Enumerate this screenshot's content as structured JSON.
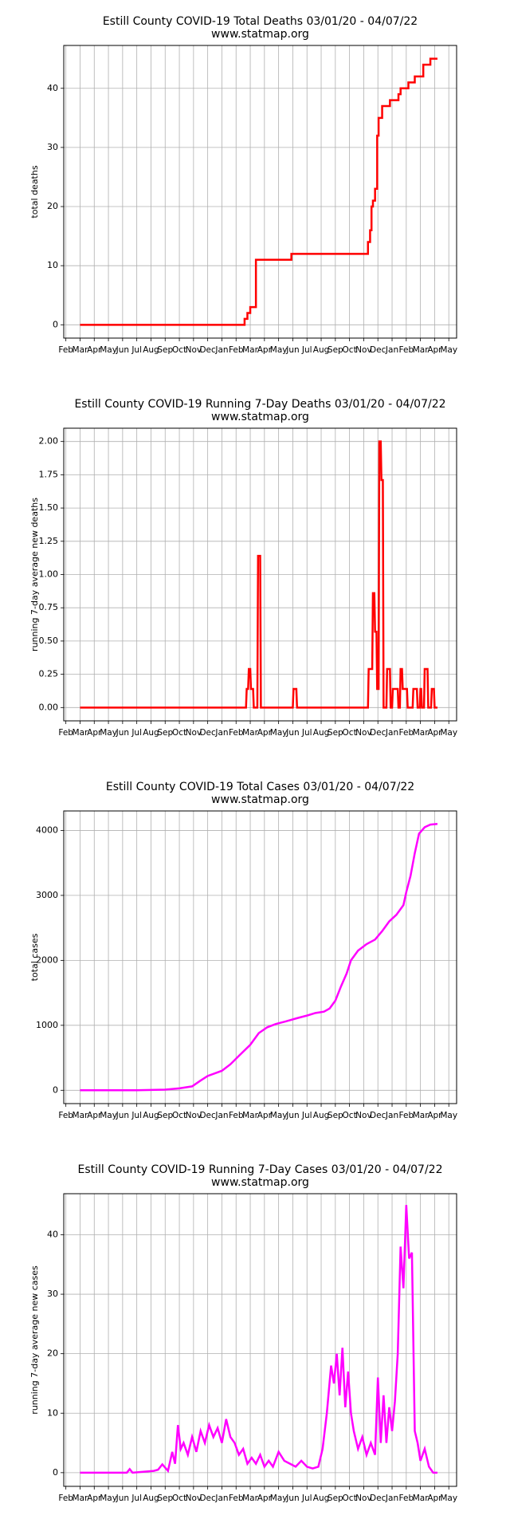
{
  "chart_data": [
    {
      "type": "line",
      "title": "Estill County COVID-19 Total Deaths 03/01/20 - 04/07/22",
      "subtitle": "www.statmap.org",
      "ylabel": "total deaths",
      "color": "#ff0000",
      "grid": true,
      "x": [
        1,
        12.6,
        12.6,
        12.8,
        12.8,
        13.0,
        13.0,
        13.4,
        13.4,
        15.9,
        15.9,
        21.3,
        21.3,
        21.45,
        21.45,
        21.55,
        21.55,
        21.65,
        21.65,
        21.8,
        21.8,
        21.95,
        21.95,
        22.05,
        22.05,
        22.3,
        22.3,
        22.85,
        22.85,
        23.45,
        23.45,
        23.6,
        23.6,
        24.15,
        24.15,
        24.6,
        24.6,
        25.2,
        25.2,
        25.7,
        25.7,
        26.2
      ],
      "values": [
        0,
        0,
        1,
        1,
        2,
        2,
        3,
        3,
        11,
        11,
        12,
        12,
        14,
        14,
        16,
        16,
        20,
        20,
        21,
        21,
        23,
        23,
        32,
        32,
        35,
        35,
        37,
        37,
        38,
        38,
        39,
        39,
        40,
        40,
        41,
        41,
        42,
        42,
        44,
        44,
        45,
        45
      ],
      "xlim": [
        -0.15,
        27.55
      ],
      "xticks": [
        {
          "value": 0,
          "label": "Feb"
        },
        {
          "value": 1,
          "label": "Mar"
        },
        {
          "value": 2,
          "label": "Apr"
        },
        {
          "value": 3,
          "label": "May"
        },
        {
          "value": 4,
          "label": "Jun"
        },
        {
          "value": 5,
          "label": "Jul"
        },
        {
          "value": 6,
          "label": "Aug"
        },
        {
          "value": 7,
          "label": "Sep"
        },
        {
          "value": 8,
          "label": "Oct"
        },
        {
          "value": 9,
          "label": "Nov"
        },
        {
          "value": 10,
          "label": "Dec"
        },
        {
          "value": 11,
          "label": "Jan"
        },
        {
          "value": 12,
          "label": "Feb"
        },
        {
          "value": 13,
          "label": "Mar"
        },
        {
          "value": 14,
          "label": "Apr"
        },
        {
          "value": 15,
          "label": "May"
        },
        {
          "value": 16,
          "label": "Jun"
        },
        {
          "value": 17,
          "label": "Jul"
        },
        {
          "value": 18,
          "label": "Aug"
        },
        {
          "value": 19,
          "label": "Sep"
        },
        {
          "value": 20,
          "label": "Oct"
        },
        {
          "value": 21,
          "label": "Nov"
        },
        {
          "value": 22,
          "label": "Dec"
        },
        {
          "value": 23,
          "label": "Jan"
        },
        {
          "value": 24,
          "label": "Feb"
        },
        {
          "value": 25,
          "label": "Mar"
        },
        {
          "value": 26,
          "label": "Apr"
        },
        {
          "value": 27,
          "label": "May"
        }
      ],
      "ylim": [
        -2.25,
        47.25
      ],
      "yticks": [
        0,
        10,
        20,
        30,
        40
      ]
    },
    {
      "type": "line",
      "title": "Estill County COVID-19 Running 7-Day Deaths 03/01/20 - 04/07/22",
      "subtitle": "www.statmap.org",
      "ylabel": "running 7-day average new deaths",
      "color": "#ff0000",
      "grid": true,
      "x": [
        1,
        12.7,
        12.75,
        12.85,
        12.9,
        13.0,
        13.05,
        13.2,
        13.25,
        13.5,
        13.55,
        13.7,
        13.75,
        16.0,
        16.05,
        16.25,
        16.3,
        21.3,
        21.35,
        21.6,
        21.65,
        21.75,
        21.8,
        21.9,
        21.95,
        22.05,
        22.1,
        22.2,
        22.25,
        22.35,
        22.4,
        22.6,
        22.65,
        22.85,
        22.9,
        23.0,
        23.05,
        23.4,
        23.45,
        23.55,
        23.6,
        23.7,
        23.75,
        24.05,
        24.1,
        24.45,
        24.5,
        24.75,
        24.8,
        24.95,
        25.0,
        25.05,
        25.1,
        25.25,
        25.3,
        25.5,
        25.55,
        25.75,
        25.8,
        25.95,
        26.0,
        26.2
      ],
      "values": [
        0,
        0,
        0.14,
        0.14,
        0.29,
        0.29,
        0.14,
        0.14,
        0,
        0,
        1.14,
        1.14,
        0,
        0,
        0.14,
        0.14,
        0,
        0,
        0.29,
        0.29,
        0.86,
        0.86,
        0.57,
        0.57,
        0.14,
        0.14,
        2.0,
        2.0,
        1.71,
        1.71,
        0,
        0,
        0.29,
        0.29,
        0,
        0,
        0.14,
        0.14,
        0,
        0,
        0.29,
        0.29,
        0.14,
        0.14,
        0,
        0,
        0.14,
        0.14,
        0,
        0,
        0.14,
        0.14,
        0,
        0,
        0.29,
        0.29,
        0,
        0,
        0.14,
        0.14,
        0,
        0
      ],
      "xlim": [
        -0.15,
        27.55
      ],
      "xticks": [
        {
          "value": 0,
          "label": "Feb"
        },
        {
          "value": 1,
          "label": "Mar"
        },
        {
          "value": 2,
          "label": "Apr"
        },
        {
          "value": 3,
          "label": "May"
        },
        {
          "value": 4,
          "label": "Jun"
        },
        {
          "value": 5,
          "label": "Jul"
        },
        {
          "value": 6,
          "label": "Aug"
        },
        {
          "value": 7,
          "label": "Sep"
        },
        {
          "value": 8,
          "label": "Oct"
        },
        {
          "value": 9,
          "label": "Nov"
        },
        {
          "value": 10,
          "label": "Dec"
        },
        {
          "value": 11,
          "label": "Jan"
        },
        {
          "value": 12,
          "label": "Feb"
        },
        {
          "value": 13,
          "label": "Mar"
        },
        {
          "value": 14,
          "label": "Apr"
        },
        {
          "value": 15,
          "label": "May"
        },
        {
          "value": 16,
          "label": "Jun"
        },
        {
          "value": 17,
          "label": "Jul"
        },
        {
          "value": 18,
          "label": "Aug"
        },
        {
          "value": 19,
          "label": "Sep"
        },
        {
          "value": 20,
          "label": "Oct"
        },
        {
          "value": 21,
          "label": "Nov"
        },
        {
          "value": 22,
          "label": "Dec"
        },
        {
          "value": 23,
          "label": "Jan"
        },
        {
          "value": 24,
          "label": "Feb"
        },
        {
          "value": 25,
          "label": "Mar"
        },
        {
          "value": 26,
          "label": "Apr"
        },
        {
          "value": 27,
          "label": "May"
        }
      ],
      "ylim": [
        -0.1,
        2.1
      ],
      "yticks": [
        {
          "value": 0,
          "label": "0.00"
        },
        {
          "value": 0.25,
          "label": "0.25"
        },
        {
          "value": 0.5,
          "label": "0.50"
        },
        {
          "value": 0.75,
          "label": "0.75"
        },
        {
          "value": 1,
          "label": "1.00"
        },
        {
          "value": 1.25,
          "label": "1.25"
        },
        {
          "value": 1.5,
          "label": "1.50"
        },
        {
          "value": 1.75,
          "label": "1.75"
        },
        {
          "value": 2,
          "label": "2.00"
        }
      ]
    },
    {
      "type": "line",
      "title": "Estill County COVID-19 Total Cases 03/01/20 - 04/07/22",
      "subtitle": "www.statmap.org",
      "ylabel": "total cases",
      "color": "#ff00ff",
      "grid": true,
      "x": [
        1,
        5,
        7,
        8,
        8.9,
        9.5,
        10,
        11,
        11.6,
        12.2,
        13,
        13.6,
        14.2,
        14.8,
        15.5,
        16.3,
        17,
        17.6,
        18.2,
        18.6,
        19,
        19.4,
        19.8,
        20.1,
        20.6,
        21.2,
        21.8,
        22.3,
        22.8,
        23.3,
        23.8,
        24,
        24.3,
        24.6,
        24.9,
        25.3,
        25.7,
        26.2
      ],
      "values": [
        0,
        0,
        10,
        30,
        60,
        150,
        220,
        300,
        400,
        530,
        700,
        880,
        970,
        1020,
        1060,
        1110,
        1150,
        1190,
        1210,
        1260,
        1380,
        1600,
        1800,
        2000,
        2150,
        2250,
        2320,
        2450,
        2600,
        2700,
        2850,
        3050,
        3300,
        3650,
        3950,
        4050,
        4090,
        4100
      ],
      "xlim": [
        -0.15,
        27.55
      ],
      "xticks": [
        {
          "value": 0,
          "label": "Feb"
        },
        {
          "value": 1,
          "label": "Mar"
        },
        {
          "value": 2,
          "label": "Apr"
        },
        {
          "value": 3,
          "label": "May"
        },
        {
          "value": 4,
          "label": "Jun"
        },
        {
          "value": 5,
          "label": "Jul"
        },
        {
          "value": 6,
          "label": "Aug"
        },
        {
          "value": 7,
          "label": "Sep"
        },
        {
          "value": 8,
          "label": "Oct"
        },
        {
          "value": 9,
          "label": "Nov"
        },
        {
          "value": 10,
          "label": "Dec"
        },
        {
          "value": 11,
          "label": "Jan"
        },
        {
          "value": 12,
          "label": "Feb"
        },
        {
          "value": 13,
          "label": "Mar"
        },
        {
          "value": 14,
          "label": "Apr"
        },
        {
          "value": 15,
          "label": "May"
        },
        {
          "value": 16,
          "label": "Jun"
        },
        {
          "value": 17,
          "label": "Jul"
        },
        {
          "value": 18,
          "label": "Aug"
        },
        {
          "value": 19,
          "label": "Sep"
        },
        {
          "value": 20,
          "label": "Oct"
        },
        {
          "value": 21,
          "label": "Nov"
        },
        {
          "value": 22,
          "label": "Dec"
        },
        {
          "value": 23,
          "label": "Jan"
        },
        {
          "value": 24,
          "label": "Feb"
        },
        {
          "value": 25,
          "label": "Mar"
        },
        {
          "value": 26,
          "label": "Apr"
        },
        {
          "value": 27,
          "label": "May"
        }
      ],
      "ylim": [
        -205,
        4300
      ],
      "yticks": [
        0,
        1000,
        2000,
        3000,
        4000
      ]
    },
    {
      "type": "line",
      "title": "Estill County COVID-19 Running 7-Day Cases 03/01/20 - 04/07/22",
      "subtitle": "www.statmap.org",
      "ylabel": "running 7-day average new cases",
      "color": "#ff00ff",
      "grid": true,
      "x": [
        1,
        4.3,
        4.5,
        4.7,
        6.2,
        6.5,
        6.8,
        7.2,
        7.5,
        7.7,
        7.9,
        8.1,
        8.3,
        8.6,
        8.9,
        9.2,
        9.5,
        9.8,
        10.1,
        10.4,
        10.7,
        11,
        11.3,
        11.6,
        11.9,
        12.2,
        12.5,
        12.8,
        13.1,
        13.4,
        13.7,
        14,
        14.3,
        14.6,
        15,
        15.4,
        15.8,
        16.2,
        16.6,
        17,
        17.4,
        17.8,
        18.1,
        18.4,
        18.7,
        18.9,
        19.1,
        19.3,
        19.5,
        19.7,
        19.9,
        20.1,
        20.3,
        20.6,
        20.9,
        21.2,
        21.5,
        21.8,
        22,
        22.2,
        22.4,
        22.6,
        22.8,
        23,
        23.2,
        23.4,
        23.6,
        23.8,
        24,
        24.2,
        24.4,
        24.6,
        24.8,
        25,
        25.3,
        25.6,
        25.9,
        26.2
      ],
      "values": [
        0,
        0,
        0.6,
        0,
        0.3,
        0.5,
        1.4,
        0.3,
        3.5,
        1.5,
        8,
        4,
        5,
        3,
        6,
        3.5,
        7,
        5,
        8,
        6,
        7.5,
        5,
        9,
        6,
        5,
        3,
        4,
        1.5,
        2.5,
        1.5,
        3,
        1,
        2,
        1,
        3.5,
        2,
        1.5,
        1,
        2,
        1,
        0.7,
        1,
        4,
        10,
        18,
        15,
        20,
        13,
        21,
        11,
        17,
        10,
        7,
        4,
        6,
        3,
        5,
        3,
        16,
        5,
        13,
        5,
        11,
        7,
        12,
        20,
        38,
        31,
        45,
        36,
        37,
        7,
        5,
        2,
        4,
        1,
        0,
        0
      ],
      "xlim": [
        -0.15,
        27.55
      ],
      "xticks": [
        {
          "value": 0,
          "label": "Feb"
        },
        {
          "value": 1,
          "label": "Mar"
        },
        {
          "value": 2,
          "label": "Apr"
        },
        {
          "value": 3,
          "label": "May"
        },
        {
          "value": 4,
          "label": "Jun"
        },
        {
          "value": 5,
          "label": "Jul"
        },
        {
          "value": 6,
          "label": "Aug"
        },
        {
          "value": 7,
          "label": "Sep"
        },
        {
          "value": 8,
          "label": "Oct"
        },
        {
          "value": 9,
          "label": "Nov"
        },
        {
          "value": 10,
          "label": "Dec"
        },
        {
          "value": 11,
          "label": "Jan"
        },
        {
          "value": 12,
          "label": "Feb"
        },
        {
          "value": 13,
          "label": "Mar"
        },
        {
          "value": 14,
          "label": "Apr"
        },
        {
          "value": 15,
          "label": "May"
        },
        {
          "value": 16,
          "label": "Jun"
        },
        {
          "value": 17,
          "label": "Jul"
        },
        {
          "value": 18,
          "label": "Aug"
        },
        {
          "value": 19,
          "label": "Sep"
        },
        {
          "value": 20,
          "label": "Oct"
        },
        {
          "value": 21,
          "label": "Nov"
        },
        {
          "value": 22,
          "label": "Dec"
        },
        {
          "value": 23,
          "label": "Jan"
        },
        {
          "value": 24,
          "label": "Feb"
        },
        {
          "value": 25,
          "label": "Mar"
        },
        {
          "value": 26,
          "label": "Apr"
        },
        {
          "value": 27,
          "label": "May"
        }
      ],
      "ylim": [
        -2.3,
        46.9
      ],
      "yticks": [
        0,
        10,
        20,
        30,
        40
      ]
    }
  ]
}
